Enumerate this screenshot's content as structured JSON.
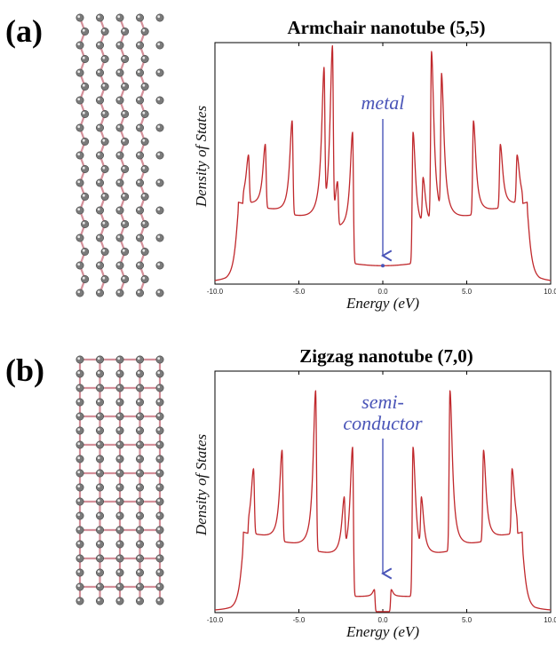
{
  "panels": [
    {
      "label": "(a)"
    },
    {
      "label": "(b)"
    }
  ],
  "colors": {
    "curve": "#c0282c",
    "arrow": "#4a55b8",
    "bond": "#d4909a",
    "atom": "#7a7a7a"
  },
  "chart_data": [
    {
      "type": "line",
      "title": "Armchair  nanotube  (5,5)",
      "xlabel": "Energy  (eV)",
      "ylabel": "Density of States",
      "xlim": [
        -10.0,
        10.0
      ],
      "ylim": [
        0,
        1.05
      ],
      "x_ticks": [
        "-10.0",
        "-5.0",
        "0.0",
        "5.0",
        "10.0"
      ],
      "x_tick_values": [
        -10,
        -5,
        0,
        5,
        10
      ],
      "annotation": {
        "text": "metal",
        "x": 0.0
      },
      "gap_level": 0.08,
      "gap_edges": [
        -1.8,
        1.8
      ],
      "peaks": [
        {
          "x": -8.4,
          "y": 0.25
        },
        {
          "x": -8.0,
          "y": 0.55
        },
        {
          "x": -7.0,
          "y": 0.6
        },
        {
          "x": -5.4,
          "y": 0.7
        },
        {
          "x": -3.5,
          "y": 0.85
        },
        {
          "x": -3.0,
          "y": 0.98
        },
        {
          "x": -2.7,
          "y": 0.43
        },
        {
          "x": -1.8,
          "y": 0.66
        },
        {
          "x": 1.8,
          "y": 0.66
        },
        {
          "x": 2.4,
          "y": 0.43
        },
        {
          "x": 2.9,
          "y": 0.98
        },
        {
          "x": 3.5,
          "y": 0.85
        },
        {
          "x": 5.4,
          "y": 0.7
        },
        {
          "x": 7.0,
          "y": 0.6
        },
        {
          "x": 8.0,
          "y": 0.55
        },
        {
          "x": 8.4,
          "y": 0.25
        }
      ]
    },
    {
      "type": "line",
      "title": "Zigzag  nanotube  (7,0)",
      "xlabel": "Energy  (eV)",
      "ylabel": "Density of States",
      "xlim": [
        -10.0,
        10.0
      ],
      "ylim": [
        0,
        1.05
      ],
      "x_ticks": [
        "-10.0",
        "-5.0",
        "0.0",
        "5.0",
        "10.0"
      ],
      "x_tick_values": [
        -10,
        -5,
        0,
        5,
        10
      ],
      "annotation": {
        "text": "semi-\nconductor",
        "x": 0.0
      },
      "gap_edges": [
        -0.5,
        0.5
      ],
      "peaks": [
        {
          "x": -8.1,
          "y": 0.17
        },
        {
          "x": -7.7,
          "y": 0.62
        },
        {
          "x": -6.0,
          "y": 0.7
        },
        {
          "x": -4.0,
          "y": 0.96
        },
        {
          "x": -2.3,
          "y": 0.45
        },
        {
          "x": -1.8,
          "y": 0.72
        },
        {
          "x": -0.5,
          "y": 0.1
        },
        {
          "x": 0.5,
          "y": 0.1
        },
        {
          "x": 1.8,
          "y": 0.72
        },
        {
          "x": 2.3,
          "y": 0.45
        },
        {
          "x": 4.0,
          "y": 0.96
        },
        {
          "x": 6.0,
          "y": 0.7
        },
        {
          "x": 7.7,
          "y": 0.62
        },
        {
          "x": 8.1,
          "y": 0.17
        }
      ]
    }
  ]
}
